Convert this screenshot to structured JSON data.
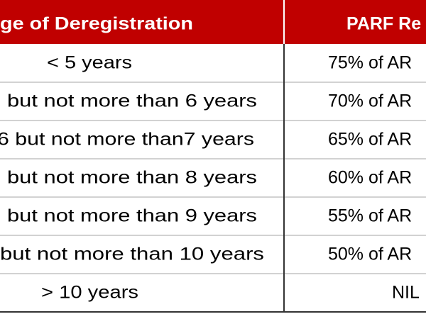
{
  "table": {
    "header": [
      "ge of Deregistration",
      "PARF Re"
    ],
    "rows": [
      [
        "< 5 years",
        "75% of AR"
      ],
      [
        "but not more than 6 years",
        "70% of AR"
      ],
      [
        "6 but not more than7 years",
        "65% of AR"
      ],
      [
        "but not more than 8 years",
        "60% of AR"
      ],
      [
        "but not more than 9 years",
        "55% of AR"
      ],
      [
        "but not more than 10 years",
        "50% of AR"
      ],
      [
        "> 10 years",
        "NIL"
      ]
    ]
  }
}
